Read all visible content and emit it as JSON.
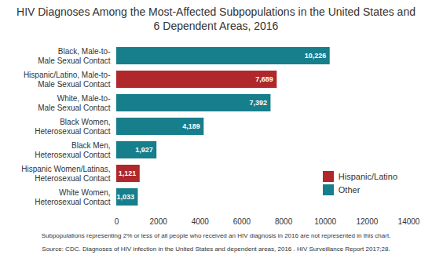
{
  "chart_data": {
    "type": "bar",
    "orientation": "horizontal",
    "title": "HIV Diagnoses Among the Most-Affected Subpopulations in the United States and 6 Dependent Areas, 2016",
    "categories": [
      "Black, Male-to-Male Sexual Contact",
      "Hispanic/Latino, Male-to-Male Sexual Contact",
      "White, Male-to-Male Sexual Contact",
      "Black Women, Heterosexual Contact",
      "Black Men, Heterosexual Contact",
      "Hispanic Women/Latinas, Heterosexual Contact",
      "White Women, Heterosexual Contact"
    ],
    "series": [
      {
        "name": "Hispanic/Latino",
        "color": "#b0282b",
        "values": [
          null,
          7689,
          null,
          null,
          null,
          1121,
          null
        ],
        "value_labels": [
          null,
          "7,689",
          null,
          null,
          null,
          "1,121",
          null
        ]
      },
      {
        "name": "Other",
        "color": "#177e8c",
        "values": [
          10226,
          null,
          7392,
          4189,
          1927,
          null,
          1033
        ],
        "value_labels": [
          "10,226",
          null,
          "7,392",
          "4,189",
          "1,927",
          null,
          "1,033"
        ]
      }
    ],
    "xlim": [
      0,
      14000
    ],
    "xticks": [
      0,
      2000,
      4000,
      6000,
      8000,
      10000,
      12000,
      14000
    ],
    "grid": false,
    "legend": "bottom-right",
    "data_labels": true,
    "notes": "Subpopulations representing 2% or less of all people who received an HIV diagnosis in 2016 are not represented in this chart.",
    "source": "Source: CDC. Diagnoses of HIV infection in the United States and dependent areas, 2016 . HIV Surveillance Report 2017;28."
  }
}
